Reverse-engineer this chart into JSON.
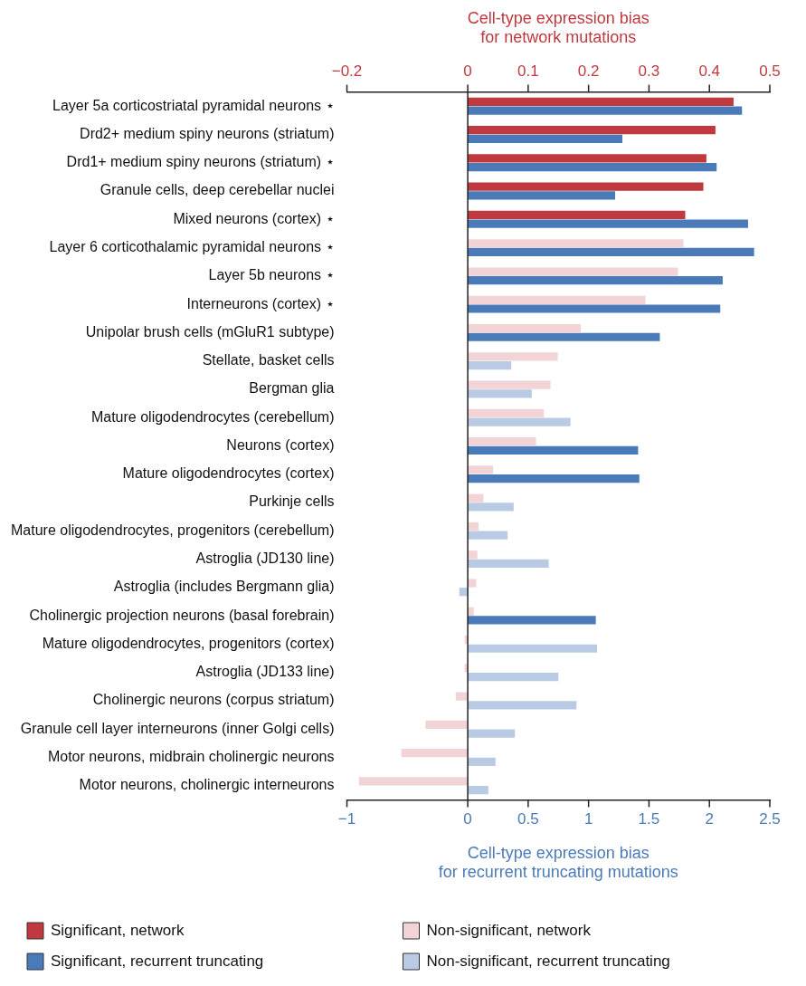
{
  "chart_data": {
    "type": "bar",
    "orientation": "horizontal",
    "categories": [
      "Layer 5a corticostriatal pyramidal neurons ⋆",
      "Drd2+ medium spiny neurons (striatum)",
      "Drd1+ medium spiny neurons (striatum) ⋆",
      "Granule cells, deep cerebellar nuclei",
      "Mixed neurons (cortex) ⋆",
      "Layer 6 corticothalamic pyramidal neurons ⋆",
      "Layer 5b neurons ⋆",
      "Interneurons (cortex) ⋆",
      "Unipolar brush cells (mGluR1 subtype)",
      "Stellate, basket cells",
      "Bergman glia",
      "Mature oligodendrocytes (cerebellum)",
      "Neurons (cortex)",
      "Mature oligodendrocytes (cortex)",
      "Purkinje cells",
      "Mature oligodendrocytes, progenitors (cerebellum)",
      "Astroglia (JD130 line)",
      "Astroglia (includes Bergmann glia)",
      "Cholinergic projection neurons (basal forebrain)",
      "Mature oligodendrocytes, progenitors (cortex)",
      "Astroglia (JD133 line)",
      "Cholinergic neurons (corpus striatum)",
      "Granule cell layer interneurons (inner Golgi cells)",
      "Motor neurons, midbrain cholinergic neurons",
      "Motor neurons, cholinergic interneurons"
    ],
    "series": [
      {
        "name": "Significant, network",
        "color": "#c0393f",
        "axis": "x2",
        "values": [
          0.44,
          0.41,
          0.395,
          0.39,
          0.36,
          null,
          null,
          null,
          null,
          null,
          null,
          null,
          null,
          null,
          null,
          null,
          null,
          null,
          null,
          null,
          null,
          null,
          null,
          null,
          null
        ]
      },
      {
        "name": "Non-significant, network",
        "color": "#f2d3d6",
        "axis": "x2",
        "values": [
          null,
          null,
          null,
          null,
          null,
          0.357,
          0.348,
          0.294,
          0.187,
          0.149,
          0.137,
          0.126,
          0.113,
          0.042,
          0.026,
          0.018,
          0.016,
          0.014,
          0.01,
          -0.005,
          -0.005,
          -0.02,
          -0.07,
          -0.11,
          -0.18
        ]
      },
      {
        "name": "Significant, recurrent truncating",
        "color": "#4a7ab8",
        "values": [
          2.27,
          1.28,
          2.06,
          1.22,
          2.32,
          2.37,
          2.11,
          2.09,
          1.59,
          null,
          null,
          null,
          1.41,
          1.42,
          null,
          null,
          null,
          null,
          1.06,
          null,
          null,
          null,
          null,
          null,
          null
        ]
      },
      {
        "name": "Non-significant, recurrent truncating",
        "color": "#b9cbe4",
        "values": [
          null,
          null,
          null,
          null,
          null,
          null,
          null,
          null,
          null,
          0.36,
          0.53,
          0.85,
          null,
          null,
          0.38,
          0.33,
          0.67,
          -0.07,
          null,
          1.07,
          0.75,
          0.9,
          0.39,
          0.23,
          0.17
        ]
      }
    ],
    "xlabel": "Cell-type expression bias\nfor recurrent truncating mutations",
    "xlim": [
      -1,
      2.5
    ],
    "xticks": [
      {
        "value": -1,
        "label": "−1"
      },
      0,
      0.5,
      1,
      1.5,
      2,
      2.5
    ],
    "x2label": "Cell-type expression bias\nfor network mutations",
    "x2lim": [
      -0.2,
      0.5
    ],
    "x2ticks": [
      {
        "value": -0.2,
        "label": "−0.2"
      },
      0,
      0.1,
      0.2,
      0.3,
      0.4,
      0.5
    ],
    "ref_lines": [
      {
        "axis": "x",
        "value": 0
      }
    ],
    "legend": "bottom",
    "grid": false
  }
}
